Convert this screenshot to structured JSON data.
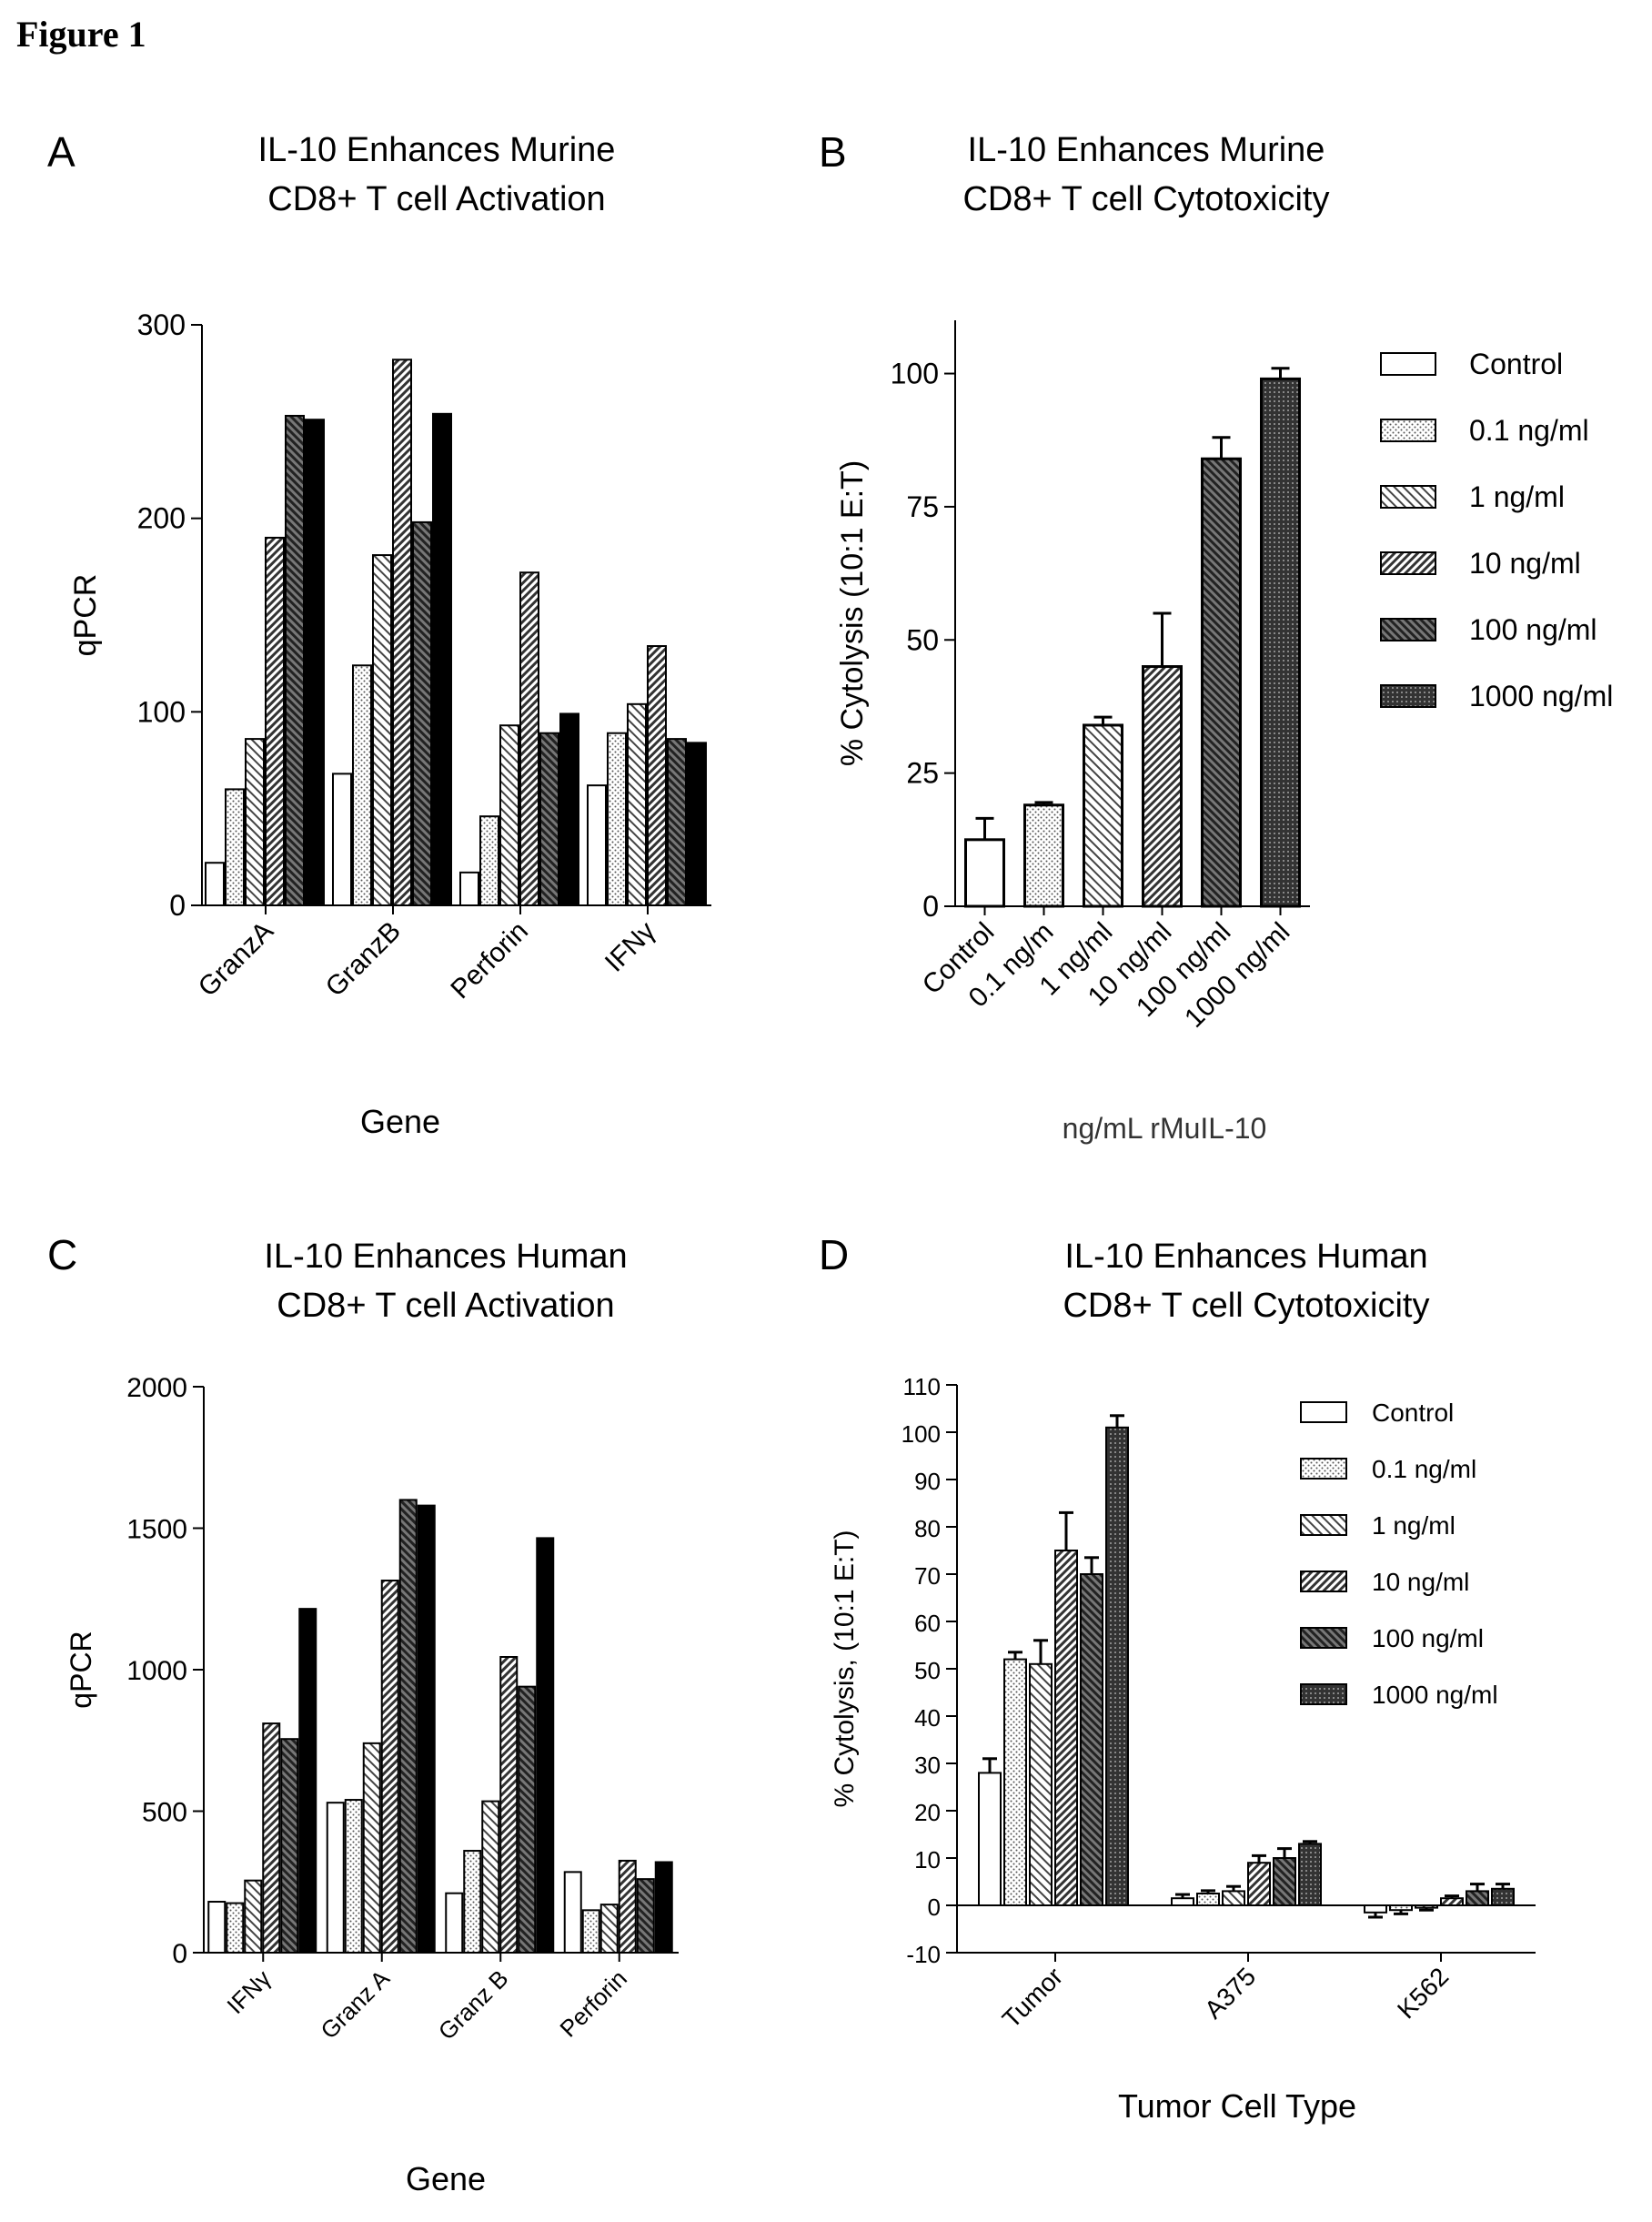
{
  "figure_title": "Figure 1",
  "colors": {
    "ink": "#000000",
    "paper": "#ffffff",
    "bar_light": "#d9d9d9",
    "bar_mid": "#a6a6a6",
    "bar_dark": "#555555"
  },
  "chart_data": [
    {
      "panel": "A",
      "type": "bar",
      "title": [
        "IL-10 Enhances Murine",
        "CD8+ T cell Activation"
      ],
      "xlabel": "Gene",
      "ylabel": "qPCR",
      "ylim": [
        0,
        300
      ],
      "yticks": [
        "0",
        "100",
        "200",
        "300"
      ],
      "categories": [
        "GranzA",
        "GranzB",
        "Perforin",
        "IFNγ"
      ],
      "series": [
        {
          "values": [
            22,
            68,
            17,
            62
          ]
        },
        {
          "values": [
            60,
            124,
            46,
            89
          ]
        },
        {
          "values": [
            86,
            181,
            93,
            104
          ]
        },
        {
          "values": [
            190,
            282,
            172,
            134
          ]
        },
        {
          "values": [
            253,
            198,
            89,
            86
          ]
        },
        {
          "values": [
            251,
            254,
            99,
            84
          ]
        }
      ],
      "grid": false
    },
    {
      "panel": "B",
      "type": "bar",
      "title": [
        "IL-10 Enhances Murine",
        "CD8+ T cell Cytotoxicity"
      ],
      "xlabel": "ng/mL rMuIL-10",
      "ylabel": "% Cytolysis (10:1 E:T)",
      "ylim": [
        0,
        110
      ],
      "yticks": [
        "0",
        "25",
        "50",
        "75",
        "100"
      ],
      "categories": [
        "Control",
        "0.1 ng/m",
        "1 ng/ml",
        "10 ng/ml",
        "100 ng/ml",
        "1000 ng/ml"
      ],
      "values": [
        12.5,
        19,
        34,
        45,
        84,
        99
      ],
      "errors": [
        4,
        0.5,
        1.5,
        10,
        4,
        2
      ],
      "legend": [
        "Control",
        "0.1 ng/ml",
        "1 ng/ml",
        "10 ng/ml",
        "100 ng/ml",
        "1000 ng/ml"
      ],
      "legend_position": "right",
      "grid": false
    },
    {
      "panel": "C",
      "type": "bar",
      "title": [
        "IL-10 Enhances Human",
        "CD8+ T cell Activation"
      ],
      "xlabel": "Gene",
      "ylabel": "qPCR",
      "ylim": [
        0,
        2000
      ],
      "yticks": [
        "0",
        "500",
        "1000",
        "1500",
        "2000"
      ],
      "categories": [
        "IFNγ",
        "Granz A",
        "Granz B",
        "Perforin"
      ],
      "series": [
        {
          "values": [
            180,
            530,
            210,
            285
          ]
        },
        {
          "values": [
            175,
            540,
            360,
            150
          ]
        },
        {
          "values": [
            255,
            740,
            535,
            170
          ]
        },
        {
          "values": [
            810,
            1315,
            1045,
            325
          ]
        },
        {
          "values": [
            755,
            1600,
            940,
            260
          ]
        },
        {
          "values": [
            1215,
            1580,
            1465,
            320
          ]
        }
      ],
      "grid": false
    },
    {
      "panel": "D",
      "type": "bar",
      "title": [
        "IL-10 Enhances Human",
        "CD8+ T cell Cytotoxicity"
      ],
      "xlabel": "Tumor  Cell Type",
      "ylabel": "% Cytolysis, (10:1 E:T)",
      "ylim": [
        -10,
        110
      ],
      "yticks": [
        "-10",
        "0",
        "10",
        "20",
        "30",
        "40",
        "50",
        "60",
        "70",
        "80",
        "90",
        "100",
        "110"
      ],
      "categories": [
        "Tumor",
        "A375",
        "K562"
      ],
      "series": [
        {
          "name": "Control",
          "values": [
            28,
            1.5,
            -1.5
          ],
          "errors": [
            3,
            0.8,
            1
          ]
        },
        {
          "name": "0.1 ng/ml",
          "values": [
            52,
            2.5,
            -1
          ],
          "errors": [
            1.5,
            0.6,
            0.8
          ]
        },
        {
          "name": "1 ng/ml",
          "values": [
            51,
            3,
            -0.5
          ],
          "errors": [
            5,
            1,
            0.5
          ]
        },
        {
          "name": "10 ng/ml",
          "values": [
            75,
            9,
            1.5
          ],
          "errors": [
            8,
            1.5,
            0.5
          ]
        },
        {
          "name": "100 ng/ml",
          "values": [
            70,
            10,
            3
          ],
          "errors": [
            3.5,
            2,
            1.5
          ]
        },
        {
          "name": "1000 ng/ml",
          "values": [
            101,
            13,
            3.5
          ],
          "errors": [
            2.5,
            0.5,
            1
          ]
        }
      ],
      "legend_position": "top-right",
      "grid": false
    }
  ]
}
